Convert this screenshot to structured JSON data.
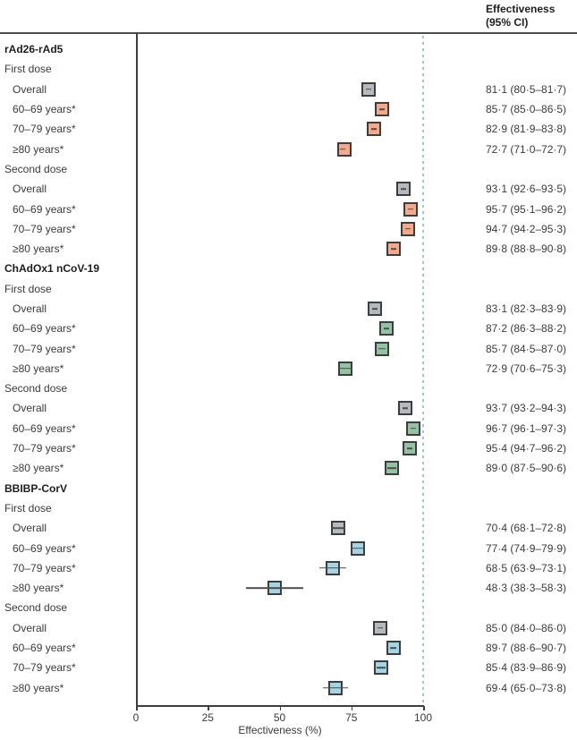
{
  "header": {
    "line1": "Effectiveness",
    "line2": "(95% CI)"
  },
  "chart_data": {
    "type": "forest",
    "title": "",
    "xlabel": "Effectiveness (%)",
    "value_column_header": "Effectiveness (95% CI)",
    "xlim": [
      0,
      100
    ],
    "x_ticks": [
      "0",
      "25",
      "50",
      "75",
      "100"
    ],
    "x_tick_values": [
      0,
      25,
      50,
      75,
      100
    ],
    "reference_line_value": 100,
    "colors": {
      "gray": "#b4babd",
      "salmon": "#f4a98b",
      "green": "#92c3a3",
      "blue": "#a3d5e5",
      "marker_border": "#3d3d3d",
      "whisker": "#4d4d4d",
      "reference": "#a7c3cc"
    },
    "rows": [
      {
        "type": "group",
        "label": "rAd26-rAd5"
      },
      {
        "type": "sub",
        "label": "First dose"
      },
      {
        "type": "data",
        "label": "Overall",
        "est": 81.1,
        "lo": 80.5,
        "hi": 81.7,
        "ci_text": "81·1 (80·5–81·7)",
        "color": "gray"
      },
      {
        "type": "data",
        "label": "60–69 years*",
        "est": 85.7,
        "lo": 85.0,
        "hi": 86.5,
        "ci_text": "85·7 (85·0–86·5)",
        "color": "salmon"
      },
      {
        "type": "data",
        "label": "70–79 years*",
        "est": 82.9,
        "lo": 81.9,
        "hi": 83.8,
        "ci_text": "82·9 (81·9–83·8)",
        "color": "salmon"
      },
      {
        "type": "data",
        "label": "≥80 years*",
        "est": 72.7,
        "lo": 71.0,
        "hi": 72.7,
        "ci_text": "72·7 (71·0–72·7)",
        "color": "salmon"
      },
      {
        "type": "sub",
        "label": "Second dose"
      },
      {
        "type": "data",
        "label": "Overall",
        "est": 93.1,
        "lo": 92.6,
        "hi": 93.5,
        "ci_text": "93·1 (92·6–93·5)",
        "color": "gray"
      },
      {
        "type": "data",
        "label": "60–69 years*",
        "est": 95.7,
        "lo": 95.1,
        "hi": 96.2,
        "ci_text": "95·7 (95·1–96·2)",
        "color": "salmon"
      },
      {
        "type": "data",
        "label": "70–79 years*",
        "est": 94.7,
        "lo": 94.2,
        "hi": 95.3,
        "ci_text": "94·7 (94·2–95·3)",
        "color": "salmon"
      },
      {
        "type": "data",
        "label": "≥80 years*",
        "est": 89.8,
        "lo": 88.8,
        "hi": 90.8,
        "ci_text": "89·8 (88·8–90·8)",
        "color": "salmon"
      },
      {
        "type": "group",
        "label": "ChAdOx1 nCoV-19"
      },
      {
        "type": "sub",
        "label": "First dose"
      },
      {
        "type": "data",
        "label": "Overall",
        "est": 83.1,
        "lo": 82.3,
        "hi": 83.9,
        "ci_text": "83·1 (82·3–83·9)",
        "color": "gray"
      },
      {
        "type": "data",
        "label": "60–69 years*",
        "est": 87.2,
        "lo": 86.3,
        "hi": 88.2,
        "ci_text": "87·2 (86·3–88·2)",
        "color": "green"
      },
      {
        "type": "data",
        "label": "70–79 years*",
        "est": 85.7,
        "lo": 84.5,
        "hi": 87.0,
        "ci_text": "85·7 (84·5–87·0)",
        "color": "green"
      },
      {
        "type": "data",
        "label": "≥80 years*",
        "est": 72.9,
        "lo": 70.6,
        "hi": 75.3,
        "ci_text": "72·9 (70·6–75·3)",
        "color": "green"
      },
      {
        "type": "sub",
        "label": "Second dose"
      },
      {
        "type": "data",
        "label": "Overall",
        "est": 93.7,
        "lo": 93.2,
        "hi": 94.3,
        "ci_text": "93·7 (93·2–94·3)",
        "color": "gray"
      },
      {
        "type": "data",
        "label": "60–69 years*",
        "est": 96.7,
        "lo": 96.1,
        "hi": 97.3,
        "ci_text": "96·7 (96·1–97·3)",
        "color": "green"
      },
      {
        "type": "data",
        "label": "70–79 years*",
        "est": 95.4,
        "lo": 94.7,
        "hi": 96.2,
        "ci_text": "95·4 (94·7–96·2)",
        "color": "green"
      },
      {
        "type": "data",
        "label": "≥80 years*",
        "est": 89.0,
        "lo": 87.5,
        "hi": 90.6,
        "ci_text": "89·0 (87·5–90·6)",
        "color": "green"
      },
      {
        "type": "group",
        "label": "BBIBP-CorV"
      },
      {
        "type": "sub",
        "label": "First dose"
      },
      {
        "type": "data",
        "label": "Overall",
        "est": 70.4,
        "lo": 68.1,
        "hi": 72.8,
        "ci_text": "70·4 (68·1–72·8)",
        "color": "gray"
      },
      {
        "type": "data",
        "label": "60–69 years*",
        "est": 77.4,
        "lo": 74.9,
        "hi": 79.9,
        "ci_text": "77·4 (74·9–79·9)",
        "color": "blue"
      },
      {
        "type": "data",
        "label": "70–79 years*",
        "est": 68.5,
        "lo": 63.9,
        "hi": 73.1,
        "ci_text": "68·5 (63·9–73·1)",
        "color": "blue"
      },
      {
        "type": "data",
        "label": "≥80 years*",
        "est": 48.3,
        "lo": 38.3,
        "hi": 58.3,
        "ci_text": "48·3 (38·3–58·3)",
        "color": "blue"
      },
      {
        "type": "sub",
        "label": "Second dose"
      },
      {
        "type": "data",
        "label": "Overall",
        "est": 85.0,
        "lo": 84.0,
        "hi": 86.0,
        "ci_text": "85·0 (84·0–86·0)",
        "color": "gray"
      },
      {
        "type": "data",
        "label": "60–69 years*",
        "est": 89.7,
        "lo": 88.6,
        "hi": 90.7,
        "ci_text": "89·7 (88·6–90·7)",
        "color": "blue"
      },
      {
        "type": "data",
        "label": "70–79 years*",
        "est": 85.4,
        "lo": 83.9,
        "hi": 86.9,
        "ci_text": "85·4 (83·9–86·9)",
        "color": "blue"
      },
      {
        "type": "data",
        "label": "≥80 years*",
        "est": 69.4,
        "lo": 65.0,
        "hi": 73.8,
        "ci_text": "69·4 (65·0–73·8)",
        "color": "blue"
      }
    ]
  }
}
